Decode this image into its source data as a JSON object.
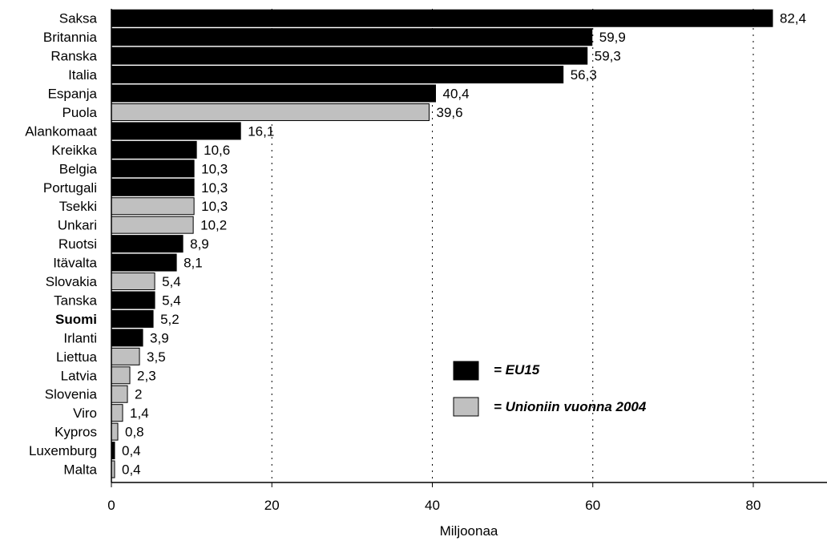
{
  "colors": {
    "eu15": "#000000",
    "joined2004": "#c0c0c0",
    "grid": "#000000"
  },
  "legend": {
    "eu15_label": "= EU15",
    "joined2004_label": "= Unioniin vuonna 2004",
    "placement": "lower-right"
  },
  "chart_data": {
    "type": "bar",
    "orientation": "horizontal",
    "categories": [
      "Saksa",
      "Britannia",
      "Ranska",
      "Italia",
      "Espanja",
      "Puola",
      "Alankomaat",
      "Kreikka",
      "Belgia",
      "Portugali",
      "Tsekki",
      "Unkari",
      "Ruotsi",
      "Itävalta",
      "Slovakia",
      "Tanska",
      "Suomi",
      "Irlanti",
      "Liettua",
      "Latvia",
      "Slovenia",
      "Viro",
      "Kypros",
      "Luxemburg",
      "Malta"
    ],
    "values": [
      82.4,
      59.9,
      59.3,
      56.3,
      40.4,
      39.6,
      16.1,
      10.6,
      10.3,
      10.3,
      10.3,
      10.2,
      8.9,
      8.1,
      5.4,
      5.4,
      5.2,
      3.9,
      3.5,
      2.3,
      2,
      1.4,
      0.8,
      0.4,
      0.4
    ],
    "value_labels": [
      "82,4",
      "59,9",
      "59,3",
      "56,3",
      "40,4",
      "39,6",
      "16,1",
      "10,6",
      "10,3",
      "10,3",
      "10,3",
      "10,2",
      "8,9",
      "8,1",
      "5,4",
      "5,4",
      "5,2",
      "3,9",
      "3,5",
      "2,3",
      "2",
      "1,4",
      "0,8",
      "0,4",
      "0,4"
    ],
    "groups": [
      "EU15",
      "EU15",
      "EU15",
      "EU15",
      "EU15",
      "2004",
      "EU15",
      "EU15",
      "EU15",
      "EU15",
      "2004",
      "2004",
      "EU15",
      "EU15",
      "2004",
      "EU15",
      "EU15",
      "EU15",
      "2004",
      "2004",
      "2004",
      "2004",
      "2004",
      "EU15",
      "2004"
    ],
    "bold_categories": [
      "Suomi"
    ],
    "xlabel": "Miljoonaa",
    "xlim": [
      0,
      88
    ],
    "xticks": [
      0,
      20,
      40,
      60,
      80
    ],
    "xtick_labels": [
      "0",
      "20",
      "40",
      "60",
      "80"
    ],
    "grid": "vertical-dotted"
  }
}
